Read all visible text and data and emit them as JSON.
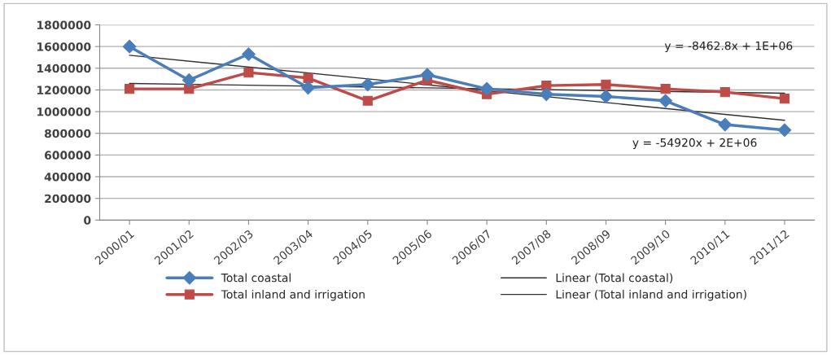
{
  "chart_data": {
    "type": "line",
    "categories": [
      "2000/01",
      "2001/02",
      "2002/03",
      "2003/04",
      "2004/05",
      "2005/06",
      "2006/07",
      "2007/08",
      "2008/09",
      "2009/10",
      "2010/11",
      "2011/12"
    ],
    "series": [
      {
        "name": "Total coastal",
        "color": "#4a7ebb",
        "marker": "diamond",
        "values": [
          1600000,
          1290000,
          1530000,
          1220000,
          1250000,
          1340000,
          1210000,
          1160000,
          1140000,
          1100000,
          880000,
          830000
        ]
      },
      {
        "name": "Total inland and irrigation",
        "color": "#be4b48",
        "marker": "square",
        "values": [
          1210000,
          1210000,
          1360000,
          1310000,
          1100000,
          1290000,
          1160000,
          1240000,
          1250000,
          1210000,
          1180000,
          1120000
        ]
      },
      {
        "name": "Linear (Total coastal)",
        "color": "#303030",
        "marker": "none",
        "x": [
          "2000/01",
          "2011/12"
        ],
        "values": [
          1520000,
          920000
        ]
      },
      {
        "name": "Linear (Total inland and irrigation)",
        "color": "#303030",
        "marker": "none",
        "x": [
          "2000/01",
          "2011/12"
        ],
        "values": [
          1260000,
          1170000
        ]
      }
    ],
    "ylim": [
      0,
      1800000
    ],
    "yticks": [
      0,
      200000,
      400000,
      600000,
      800000,
      1000000,
      1200000,
      1400000,
      1600000,
      1800000
    ],
    "grid": "y",
    "legend": "bottom",
    "annotations": [
      "y = -8462.8x + 1E+06",
      "y = -54920x + 2E+06"
    ]
  }
}
